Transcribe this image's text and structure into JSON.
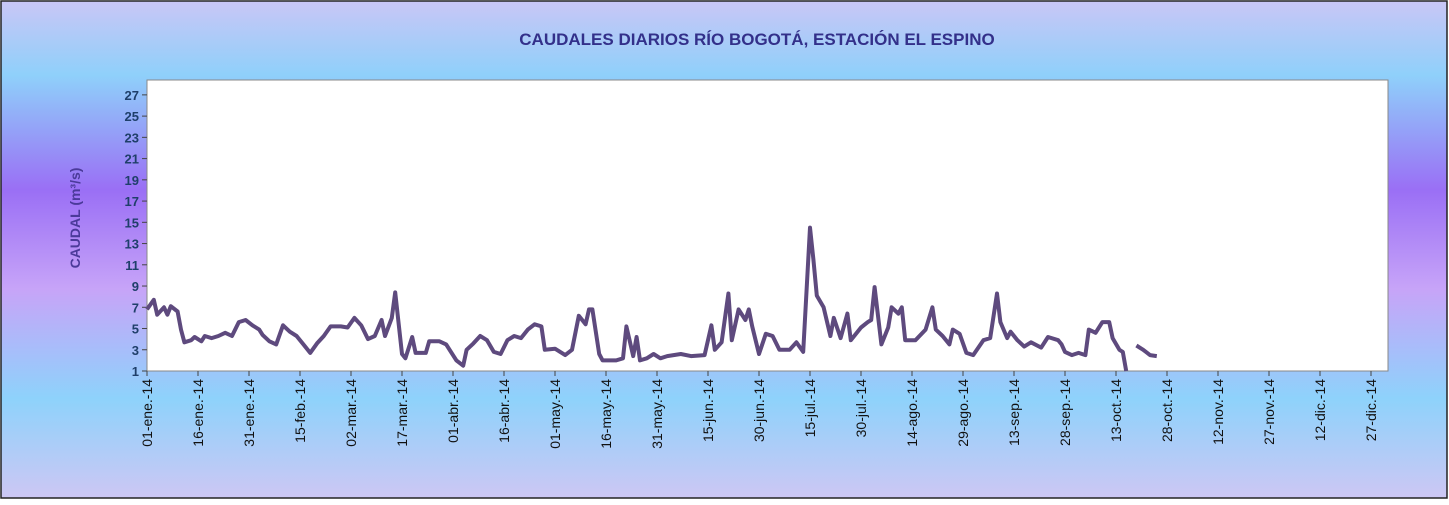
{
  "chart_data": {
    "type": "line",
    "title": "CAUDALES  DIARIOS RÍO BOGOTÁ,  ESTACIÓN  EL ESPINO",
    "ylabel": "CAUDAL  (m³/s)",
    "color": "#5e4a7e",
    "x": [
      "2014-01-01",
      "2014-01-03",
      "2014-01-04",
      "2014-01-06",
      "2014-01-07",
      "2014-01-08",
      "2014-01-10",
      "2014-01-11",
      "2014-01-12",
      "2014-01-14",
      "2014-01-15",
      "2014-01-17",
      "2014-01-18",
      "2014-01-20",
      "2014-01-22",
      "2014-01-24",
      "2014-01-26",
      "2014-01-28",
      "2014-01-30",
      "2014-02-01",
      "2014-02-03",
      "2014-02-04",
      "2014-02-06",
      "2014-02-08",
      "2014-02-10",
      "2014-02-12",
      "2014-02-14",
      "2014-02-16",
      "2014-02-18",
      "2014-02-20",
      "2014-02-22",
      "2014-02-24",
      "2014-02-27",
      "2014-03-01",
      "2014-03-03",
      "2014-03-05",
      "2014-03-07",
      "2014-03-09",
      "2014-03-11",
      "2014-03-12",
      "2014-03-14",
      "2014-03-15",
      "2014-03-17",
      "2014-03-18",
      "2014-03-20",
      "2014-03-21",
      "2014-03-24",
      "2014-03-25",
      "2014-03-28",
      "2014-03-30",
      "2014-03-31",
      "2014-04-02",
      "2014-04-04",
      "2014-04-05",
      "2014-04-07",
      "2014-04-09",
      "2014-04-11",
      "2014-04-13",
      "2014-04-15",
      "2014-04-17",
      "2014-04-19",
      "2014-04-21",
      "2014-04-23",
      "2014-04-25",
      "2014-04-27",
      "2014-04-28",
      "2014-05-01",
      "2014-05-04",
      "2014-05-06",
      "2014-05-08",
      "2014-05-10",
      "2014-05-11",
      "2014-05-12",
      "2014-05-14",
      "2014-05-15",
      "2014-05-19",
      "2014-05-21",
      "2014-05-22",
      "2014-05-24",
      "2014-05-25",
      "2014-05-26",
      "2014-05-28",
      "2014-05-30",
      "2014-06-01",
      "2014-06-03",
      "2014-06-07",
      "2014-06-10",
      "2014-06-14",
      "2014-06-16",
      "2014-06-17",
      "2014-06-19",
      "2014-06-21",
      "2014-06-22",
      "2014-06-24",
      "2014-06-26",
      "2014-06-27",
      "2014-06-28",
      "2014-06-30",
      "2014-07-02",
      "2014-07-04",
      "2014-07-06",
      "2014-07-09",
      "2014-07-11",
      "2014-07-13",
      "2014-07-15",
      "2014-07-16",
      "2014-07-17",
      "2014-07-19",
      "2014-07-21",
      "2014-07-22",
      "2014-07-24",
      "2014-07-26",
      "2014-07-27",
      "2014-07-30",
      "2014-08-01",
      "2014-08-02",
      "2014-08-03",
      "2014-08-05",
      "2014-08-07",
      "2014-08-08",
      "2014-08-10",
      "2014-08-11",
      "2014-08-12",
      "2014-08-15",
      "2014-08-18",
      "2014-08-20",
      "2014-08-21",
      "2014-08-23",
      "2014-08-25",
      "2014-08-26",
      "2014-08-28",
      "2014-08-30",
      "2014-09-01",
      "2014-09-04",
      "2014-09-06",
      "2014-09-08",
      "2014-09-09",
      "2014-09-11",
      "2014-09-12",
      "2014-09-14",
      "2014-09-16",
      "2014-09-18",
      "2014-09-21",
      "2014-09-23",
      "2014-09-26",
      "2014-09-27",
      "2014-09-28",
      "2014-09-30",
      "2014-10-02",
      "2014-10-04",
      "2014-10-05",
      "2014-10-07",
      "2014-10-09",
      "2014-10-11",
      "2014-10-12",
      "2014-10-14",
      "2014-10-15",
      "2014-10-16",
      "2014-10-17",
      "2014-10-19",
      "2014-10-21",
      "2014-10-23",
      "2014-10-25"
    ],
    "values": [
      6.8,
      7.7,
      6.3,
      7.0,
      6.3,
      7.1,
      6.6,
      4.9,
      3.7,
      3.9,
      4.2,
      3.8,
      4.3,
      4.1,
      4.3,
      4.6,
      4.3,
      5.6,
      5.8,
      5.3,
      4.9,
      4.4,
      3.8,
      3.5,
      5.3,
      4.7,
      4.3,
      3.5,
      2.7,
      3.6,
      4.3,
      5.2,
      5.2,
      5.1,
      6.0,
      5.3,
      4.0,
      4.3,
      5.8,
      4.3,
      6.0,
      8.4,
      2.6,
      2.2,
      4.2,
      2.7,
      2.7,
      3.8,
      3.8,
      3.5,
      3.0,
      2.0,
      1.5,
      3.0,
      3.6,
      4.3,
      3.9,
      2.8,
      2.6,
      3.9,
      4.3,
      4.1,
      4.9,
      5.4,
      5.2,
      3.0,
      3.1,
      2.5,
      3.0,
      6.2,
      5.4,
      6.8,
      6.8,
      2.6,
      2.0,
      2.0,
      2.2,
      5.2,
      2.4,
      4.2,
      2.0,
      2.2,
      2.6,
      2.2,
      2.4,
      2.6,
      2.4,
      2.5,
      5.3,
      3.0,
      3.7,
      8.3,
      3.9,
      6.8,
      5.8,
      6.8,
      5.2,
      2.6,
      4.5,
      4.3,
      3.0,
      3.0,
      3.7,
      2.8,
      14.5,
      11.5,
      8.1,
      7.0,
      4.3,
      6.0,
      4.1,
      6.4,
      3.9,
      5.1,
      5.6,
      5.8,
      8.9,
      3.5,
      5.1,
      7.0,
      6.4,
      7.0,
      3.9,
      3.9,
      4.9,
      7.0,
      4.9,
      4.3,
      3.5,
      4.9,
      4.5,
      2.7,
      2.5,
      3.9,
      4.1,
      8.3,
      5.6,
      4.1,
      4.7,
      3.9,
      3.3,
      3.7,
      3.2,
      4.2,
      3.9,
      3.5,
      2.8,
      2.5,
      2.7,
      2.5,
      4.9,
      4.6,
      5.6,
      5.6,
      4.1,
      3.0,
      2.8,
      1.0,
      null,
      3.4,
      3.0,
      2.5,
      2.4
    ],
    "xlim": [
      "2014-01-01",
      "2015-01-01"
    ],
    "xticks": [
      {
        "value": "2014-01-01",
        "label": "01-ene.-14"
      },
      {
        "value": "2014-01-16",
        "label": "16-ene.-14"
      },
      {
        "value": "2014-01-31",
        "label": "31-ene.-14"
      },
      {
        "value": "2014-02-15",
        "label": "15-feb.-14"
      },
      {
        "value": "2014-03-02",
        "label": "02-mar.-14"
      },
      {
        "value": "2014-03-17",
        "label": "17-mar.-14"
      },
      {
        "value": "2014-04-01",
        "label": "01-abr.-14"
      },
      {
        "value": "2014-04-16",
        "label": "16-abr.-14"
      },
      {
        "value": "2014-05-01",
        "label": "01-may.-14"
      },
      {
        "value": "2014-05-16",
        "label": "16-may.-14"
      },
      {
        "value": "2014-05-31",
        "label": "31-may.-14"
      },
      {
        "value": "2014-06-15",
        "label": "15-jun.-14"
      },
      {
        "value": "2014-06-30",
        "label": "30-jun.-14"
      },
      {
        "value": "2014-07-15",
        "label": "15-jul.-14"
      },
      {
        "value": "2014-07-30",
        "label": "30-jul.-14"
      },
      {
        "value": "2014-08-14",
        "label": "14-ago.-14"
      },
      {
        "value": "2014-08-29",
        "label": "29-ago.-14"
      },
      {
        "value": "2014-09-13",
        "label": "13-sep.-14"
      },
      {
        "value": "2014-09-28",
        "label": "28-sep.-14"
      },
      {
        "value": "2014-10-13",
        "label": "13-oct.-14"
      },
      {
        "value": "2014-10-28",
        "label": "28-oct.-14"
      },
      {
        "value": "2014-11-12",
        "label": "12-nov.-14"
      },
      {
        "value": "2014-11-27",
        "label": "27-nov.-14"
      },
      {
        "value": "2014-12-12",
        "label": "12-dic.-14"
      },
      {
        "value": "2014-12-27",
        "label": "27-dic.-14"
      }
    ],
    "ylim": [
      1,
      28.4
    ],
    "yticks": [
      1,
      3,
      5,
      7,
      9,
      11,
      13,
      15,
      17,
      19,
      21,
      23,
      25,
      27
    ]
  }
}
